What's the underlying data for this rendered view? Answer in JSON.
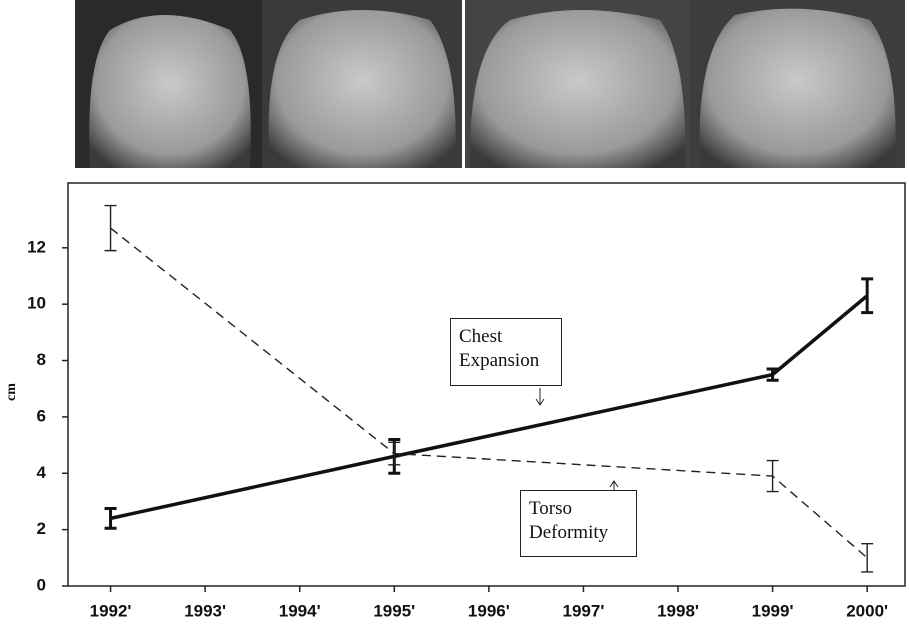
{
  "chart_data": {
    "type": "line",
    "y_label": "cm",
    "x": [
      1992,
      1995,
      1999,
      2000
    ],
    "xlim": [
      1991.55,
      2000.4
    ],
    "xticks": [
      {
        "value": 1992,
        "label": "1992'"
      },
      {
        "value": 1993,
        "label": "1993'"
      },
      {
        "value": 1994,
        "label": "1994'"
      },
      {
        "value": 1995,
        "label": "1995'"
      },
      {
        "value": 1996,
        "label": "1996'"
      },
      {
        "value": 1997,
        "label": "1997'"
      },
      {
        "value": 1998,
        "label": "1998'"
      },
      {
        "value": 1999,
        "label": "1999'"
      },
      {
        "value": 2000,
        "label": "2000'"
      }
    ],
    "ylim": [
      0,
      14.3
    ],
    "yticks": [
      0,
      2,
      4,
      6,
      8,
      10,
      12
    ],
    "series": [
      {
        "name": "Chest Expansion",
        "color": "#111111",
        "line_style": "solid",
        "line_width": 3.5,
        "values": [
          2.4,
          4.6,
          7.5,
          10.3
        ],
        "errors": [
          0.35,
          0.6,
          0.2,
          0.6
        ]
      },
      {
        "name": "Torso Deformity",
        "color": "#222222",
        "line_style": "dashed",
        "line_width": 1.4,
        "values": [
          12.7,
          4.7,
          3.9,
          1.0
        ],
        "errors": [
          0.8,
          0.4,
          0.55,
          0.5
        ]
      }
    ],
    "annotations": [
      {
        "text": "Chest Expansion"
      },
      {
        "text": "Torso Deformity"
      }
    ]
  }
}
